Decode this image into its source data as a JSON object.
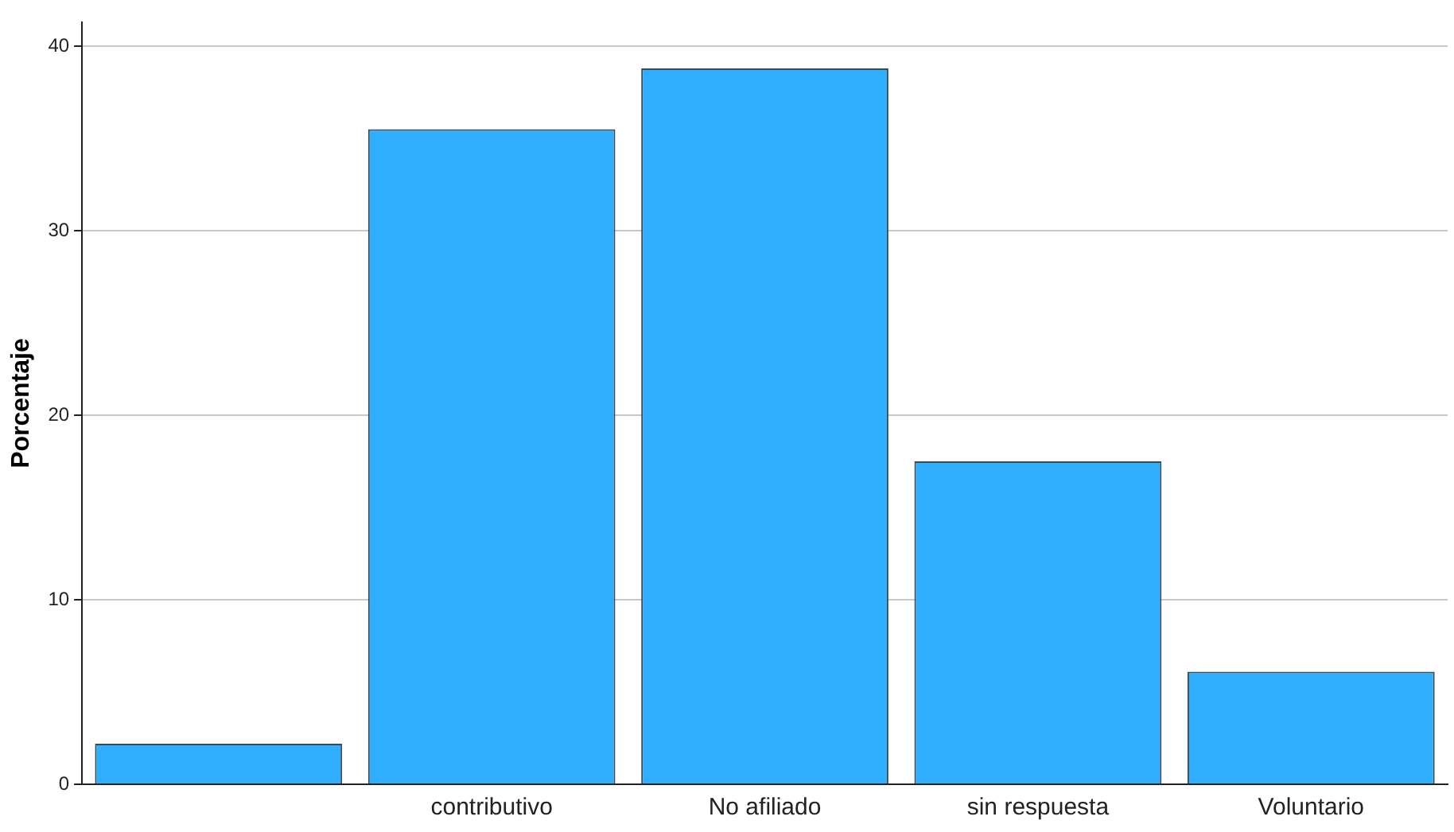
{
  "chart_data": {
    "type": "bar",
    "ylabel": "Porcentaje",
    "categories": [
      null,
      "contributivo",
      "No afiliado",
      "sin respuesta",
      "Voluntario"
    ],
    "values": [
      2.2,
      35.5,
      38.8,
      17.5,
      6.1
    ],
    "color": "#30aeff",
    "ylim": [
      0,
      41.3
    ],
    "yticks": [
      0,
      10,
      20,
      30,
      40
    ],
    "grid": "y",
    "legend": false
  }
}
